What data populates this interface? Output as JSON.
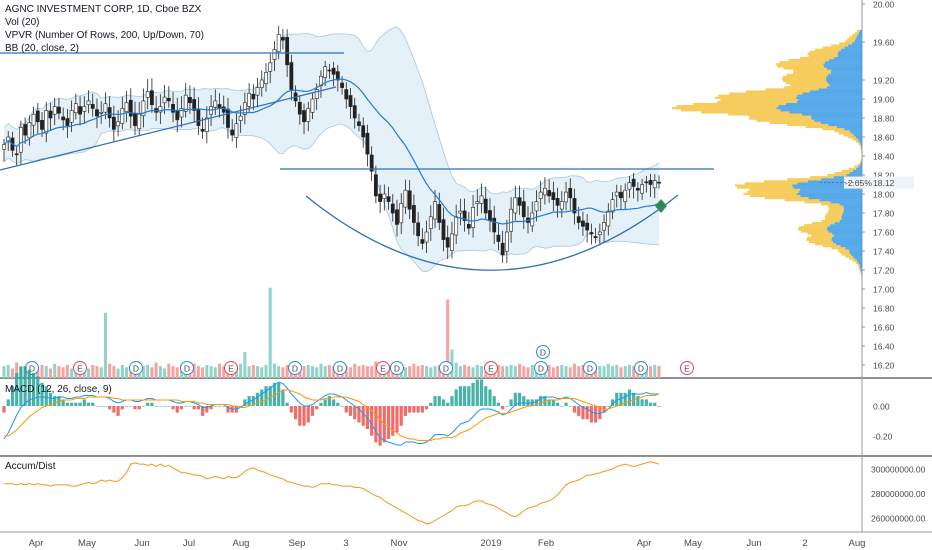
{
  "header": {
    "title": "AGNC INVESTMENT CORP, 1D, Cboe BZX",
    "vol": "Vol (20)",
    "vpvr": "VPVR (Number Of Rows, 200, Up/Down, 70)",
    "bb": "BB (20, close, 2)"
  },
  "panes": {
    "macd_label": "MACD (12, 26, close, 9)",
    "ad_label": "Accum/Dist"
  },
  "price_badge": {
    "change": "-2.05%",
    "price": "18.12"
  },
  "colors": {
    "up": "#26a69a",
    "down": "#ef5350",
    "bb": "#1e7bd6",
    "vpvr_up": "#3a9be6",
    "vpvr_down": "#f5c341"
  },
  "events": [
    "D",
    "E",
    "D",
    "D",
    "E",
    "D",
    "D",
    "E",
    "D",
    "D",
    "E",
    "D",
    "D",
    "D",
    "E"
  ],
  "chart_data": [
    {
      "type": "candlestick",
      "title": "AGNC INVESTMENT CORP, 1D, Cboe BZX",
      "x_tick_labels": [
        "Apr",
        "May",
        "Jun",
        "Jul",
        "Aug",
        "Sep",
        "3",
        "Nov",
        "2019",
        "Feb",
        "Apr",
        "May",
        "Jun",
        "2",
        "Aug"
      ],
      "y_tick_labels": [
        "20.00",
        "19.60",
        "19.20",
        "19.00",
        "18.80",
        "18.60",
        "18.40",
        "18.20",
        "18.00",
        "17.80",
        "17.60",
        "17.40",
        "17.20",
        "17.00",
        "16.80",
        "16.60",
        "16.40",
        "16.20"
      ],
      "ylim": [
        16.1,
        20.0
      ],
      "last_price": 18.12,
      "series": [
        {
          "values": [
            18.52,
            18.6,
            18.46,
            18.42,
            18.7,
            18.62,
            18.75,
            18.84,
            18.76,
            18.68,
            18.88,
            18.8,
            18.92,
            18.85,
            18.78,
            18.72,
            18.88,
            18.95,
            18.84,
            18.92,
            18.98,
            18.9,
            18.82,
            18.86,
            18.95,
            18.8,
            18.68,
            18.76,
            18.9,
            18.96,
            18.82,
            18.72,
            18.84,
            18.98,
            19.08,
            18.94,
            18.86,
            18.92,
            19.02,
            18.98,
            18.86,
            18.78,
            18.9,
            19.04,
            18.96,
            18.88,
            18.72,
            18.66,
            18.8,
            18.92,
            18.98,
            18.9,
            18.86,
            18.7,
            18.62,
            18.74,
            18.82,
            18.96,
            19.06,
            19.0,
            19.12,
            19.2,
            19.28,
            19.38,
            19.52,
            19.68,
            19.62,
            19.36,
            19.1,
            18.98,
            18.84,
            18.76,
            18.9,
            19.0,
            19.1,
            19.24,
            19.34,
            19.3,
            19.26,
            19.2,
            19.12,
            19.0,
            18.92,
            18.8,
            18.72,
            18.6,
            18.42,
            18.24,
            17.98,
            17.92,
            18.0,
            17.92,
            17.8,
            17.68,
            17.9,
            18.04,
            17.84,
            17.7,
            17.56,
            17.48,
            17.6,
            17.76,
            17.92,
            17.7,
            17.52,
            17.44,
            17.58,
            17.76,
            17.82,
            17.72,
            17.64,
            17.86,
            17.92,
            17.98,
            17.8,
            17.72,
            17.6,
            17.5,
            17.36,
            17.6,
            17.84,
            17.96,
            17.88,
            17.76,
            17.7,
            17.8,
            17.92,
            18.02,
            18.06,
            17.98,
            17.94,
            17.88,
            17.92,
            18.02,
            17.96,
            17.8,
            17.7,
            17.66,
            17.62,
            17.58,
            17.54,
            17.6,
            17.7,
            17.82,
            17.94,
            18.02,
            17.96,
            18.04,
            18.12,
            18.08,
            18.04,
            18.1,
            18.12,
            18.1,
            18.14,
            18.12
          ]
        }
      ]
    },
    {
      "type": "bar",
      "title": "Vol (20)",
      "series": [
        {
          "values": [
            1.0,
            1.1,
            0.8,
            1.3,
            0.9,
            1.0,
            1.2,
            0.7,
            0.9,
            1.1,
            1.0,
            0.8,
            1.2,
            1.0,
            0.9,
            1.1,
            0.8,
            1.0,
            1.3,
            0.9,
            0.8,
            1.1,
            1.0,
            0.9,
            5.5,
            1.2,
            1.0,
            0.8,
            1.1,
            0.9,
            1.0,
            1.2,
            0.8,
            1.0,
            1.1,
            0.9,
            1.3,
            1.0,
            0.8,
            1.2,
            1.0,
            0.9,
            1.1,
            1.0,
            0.8,
            1.2,
            1.0,
            0.9,
            1.1,
            1.0,
            0.9,
            1.2,
            1.0,
            1.1,
            0.9,
            1.0,
            1.2,
            2.2,
            1.0,
            1.1,
            1.0,
            0.9,
            1.1,
            7.6,
            1.2,
            1.0,
            0.9,
            1.1,
            1.0,
            1.2,
            0.9,
            1.0,
            1.1,
            1.0,
            0.9,
            1.2,
            1.0,
            1.1,
            1.0,
            0.9,
            1.1,
            1.0,
            0.9,
            1.2,
            1.0,
            1.1,
            1.0,
            1.0,
            1.4,
            1.2,
            1.1,
            1.0,
            1.2,
            1.0,
            1.1,
            0.9,
            1.0,
            1.2,
            1.0,
            1.1,
            1.0,
            0.9,
            1.0,
            1.1,
            1.0,
            6.6,
            2.4,
            1.3,
            1.0,
            1.1,
            1.0,
            0.9,
            1.1,
            1.0,
            0.9,
            1.2,
            1.0,
            1.1,
            1.0,
            1.0,
            1.1,
            1.0,
            1.2,
            1.0,
            0.9,
            1.1,
            1.0,
            1.2,
            1.0,
            1.1,
            0.9,
            1.0,
            1.1,
            1.0,
            0.9,
            1.2,
            1.0,
            1.1,
            1.0,
            0.9,
            1.1,
            1.0,
            1.0,
            1.2,
            1.0,
            1.1,
            0.9,
            1.0,
            1.1,
            1.0,
            1.0,
            1.1,
            0.9,
            1.0,
            1.1,
            1.0
          ]
        }
      ]
    },
    {
      "type": "line",
      "title": "MACD (12, 26, close, 9)",
      "y_tick_labels": [
        "0.00",
        "-0.20"
      ],
      "ylim": [
        -0.32,
        0.14
      ],
      "series": [
        {
          "name": "MACD",
          "values": [
            -0.22,
            -0.18,
            -0.12,
            -0.06,
            -0.01,
            0.02,
            0.04,
            0.05,
            0.06,
            0.06,
            0.06,
            0.05,
            0.05,
            0.06,
            0.06,
            0.05,
            0.05,
            0.06,
            0.06,
            0.07,
            0.07,
            0.07,
            0.06,
            0.06,
            0.06,
            0.05,
            0.03,
            0.02,
            0.03,
            0.04,
            0.04,
            0.03,
            0.03,
            0.04,
            0.05,
            0.05,
            0.04,
            0.04,
            0.04,
            0.04,
            0.03,
            0.02,
            0.02,
            0.03,
            0.03,
            0.02,
            0.01,
            -0.01,
            -0.01,
            0.0,
            0.01,
            0.01,
            0.01,
            -0.01,
            -0.02,
            -0.02,
            -0.01,
            0.01,
            0.03,
            0.04,
            0.06,
            0.08,
            0.1,
            0.12,
            0.14,
            0.16,
            0.15,
            0.12,
            0.08,
            0.05,
            0.02,
            0.0,
            0.0,
            0.01,
            0.03,
            0.05,
            0.07,
            0.08,
            0.08,
            0.07,
            0.06,
            0.04,
            0.02,
            0.0,
            -0.02,
            -0.05,
            -0.08,
            -0.12,
            -0.17,
            -0.21,
            -0.23,
            -0.24,
            -0.25,
            -0.26,
            -0.26,
            -0.24,
            -0.24,
            -0.24,
            -0.25,
            -0.25,
            -0.24,
            -0.22,
            -0.19,
            -0.19,
            -0.19,
            -0.2,
            -0.18,
            -0.15,
            -0.12,
            -0.11,
            -0.1,
            -0.07,
            -0.04,
            -0.02,
            -0.02,
            -0.02,
            -0.03,
            -0.04,
            -0.06,
            -0.05,
            -0.02,
            0.01,
            0.02,
            0.02,
            0.02,
            0.02,
            0.03,
            0.05,
            0.06,
            0.06,
            0.06,
            0.05,
            0.05,
            0.06,
            0.05,
            0.03,
            0.01,
            -0.01,
            -0.02,
            -0.04,
            -0.05,
            -0.05,
            -0.04,
            -0.02,
            0.01,
            0.04,
            0.05,
            0.06,
            0.08,
            0.08,
            0.08,
            0.08,
            0.09,
            0.08,
            0.08,
            0.08
          ]
        },
        {
          "name": "Signal",
          "values": [
            -0.2,
            -0.2,
            -0.18,
            -0.16,
            -0.13,
            -0.1,
            -0.07,
            -0.05,
            -0.03,
            -0.01,
            0.0,
            0.01,
            0.02,
            0.03,
            0.04,
            0.04,
            0.04,
            0.05,
            0.05,
            0.05,
            0.06,
            0.06,
            0.06,
            0.06,
            0.06,
            0.06,
            0.05,
            0.05,
            0.04,
            0.04,
            0.04,
            0.04,
            0.04,
            0.04,
            0.04,
            0.04,
            0.04,
            0.04,
            0.04,
            0.04,
            0.04,
            0.04,
            0.03,
            0.03,
            0.03,
            0.03,
            0.02,
            0.02,
            0.01,
            0.01,
            0.01,
            0.01,
            0.01,
            0.01,
            0.0,
            0.0,
            -0.01,
            -0.01,
            0.0,
            0.01,
            0.02,
            0.03,
            0.04,
            0.06,
            0.07,
            0.09,
            0.1,
            0.11,
            0.1,
            0.09,
            0.08,
            0.06,
            0.05,
            0.04,
            0.04,
            0.04,
            0.05,
            0.05,
            0.06,
            0.06,
            0.06,
            0.06,
            0.05,
            0.04,
            0.03,
            0.01,
            -0.01,
            -0.03,
            -0.06,
            -0.09,
            -0.12,
            -0.14,
            -0.16,
            -0.18,
            -0.2,
            -0.21,
            -0.22,
            -0.22,
            -0.23,
            -0.23,
            -0.23,
            -0.23,
            -0.22,
            -0.22,
            -0.21,
            -0.21,
            -0.21,
            -0.2,
            -0.18,
            -0.17,
            -0.16,
            -0.14,
            -0.12,
            -0.1,
            -0.08,
            -0.07,
            -0.06,
            -0.05,
            -0.05,
            -0.05,
            -0.04,
            -0.03,
            -0.02,
            -0.01,
            0.0,
            0.0,
            0.01,
            0.02,
            0.03,
            0.04,
            0.04,
            0.04,
            0.05,
            0.05,
            0.05,
            0.05,
            0.04,
            0.03,
            0.02,
            0.01,
            0.0,
            -0.01,
            -0.02,
            -0.02,
            -0.01,
            0.0,
            0.01,
            0.02,
            0.03,
            0.04,
            0.05,
            0.06,
            0.07,
            0.07,
            0.07,
            0.08
          ]
        }
      ]
    },
    {
      "type": "line",
      "title": "Accum/Dist",
      "y_tick_labels": [
        "300000000.00",
        "280000000.00",
        "260000000.00"
      ],
      "ylim": [
        251000000,
        309000000
      ],
      "series": [
        {
          "name": "Accum/Dist",
          "values": [
            288,
            288,
            288,
            287,
            288,
            287,
            288,
            287,
            288,
            287,
            287,
            286,
            287,
            287,
            287,
            287,
            286,
            286,
            287,
            288,
            289,
            288,
            289,
            291,
            290,
            291,
            290,
            290,
            293,
            297,
            304,
            305,
            304,
            304,
            303,
            304,
            302,
            304,
            302,
            303,
            301,
            299,
            297,
            297,
            296,
            295,
            295,
            294,
            292,
            293,
            294,
            293,
            292,
            294,
            293,
            293,
            295,
            298,
            300,
            301,
            299,
            298,
            297,
            295,
            294,
            293,
            292,
            290,
            289,
            288,
            287,
            286,
            286,
            285,
            286,
            288,
            288,
            288,
            287,
            287,
            286,
            286,
            286,
            285,
            285,
            284,
            282,
            280,
            278,
            277,
            274,
            272,
            270,
            268,
            266,
            264,
            262,
            260,
            258,
            257,
            255,
            256,
            258,
            260,
            262,
            264,
            266,
            269,
            270,
            270,
            271,
            273,
            274,
            274,
            272,
            271,
            270,
            268,
            266,
            264,
            262,
            261,
            263,
            266,
            268,
            269,
            270,
            272,
            273,
            274,
            276,
            279,
            283,
            287,
            289,
            290,
            291,
            293,
            295,
            295,
            296,
            297,
            298,
            299,
            300,
            302,
            303,
            304,
            303,
            302,
            303,
            304,
            305,
            306,
            305,
            304
          ]
        }
      ]
    }
  ]
}
